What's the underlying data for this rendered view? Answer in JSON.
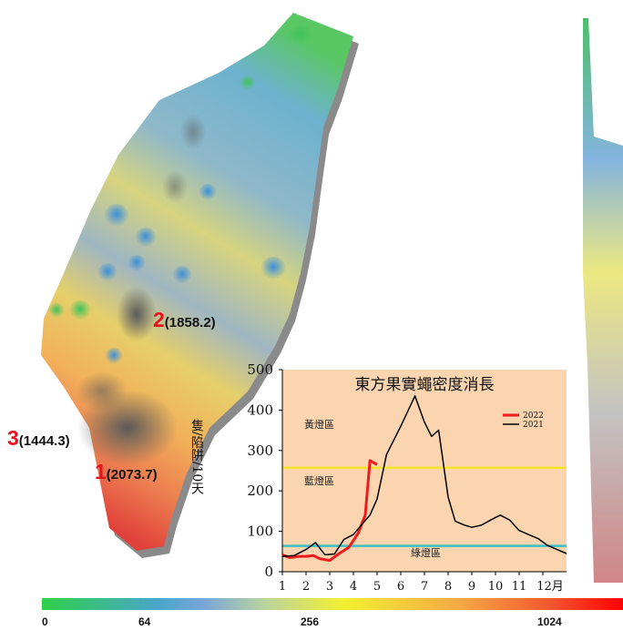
{
  "hotspots": [
    {
      "rank": "2",
      "value": "(1858.2)"
    },
    {
      "rank": "3",
      "value": "(1444.3)"
    },
    {
      "rank": "1",
      "value": "(2073.7)"
    }
  ],
  "colorbar": {
    "ticks": [
      "0",
      "64",
      "256",
      "1024"
    ],
    "colors": [
      "#2fd04a",
      "#49a6c9",
      "#f3f030",
      "#ff0000"
    ]
  },
  "chart_data": {
    "type": "line",
    "title": "東方果實蠅密度消長",
    "ylabel": "隻/陷阱/10天",
    "xlabel": "",
    "x_ticks": [
      "1",
      "2",
      "3",
      "4",
      "5",
      "6",
      "7",
      "8",
      "9",
      "10",
      "11",
      "12月"
    ],
    "y_ticks": [
      "0",
      "100",
      "200",
      "300",
      "400",
      "500"
    ],
    "xlim": [
      1,
      13
    ],
    "ylim": [
      0,
      500
    ],
    "background": "#fbd5b0",
    "zones": [
      {
        "label": "黃燈區",
        "y": 257,
        "color": "#f3e52a"
      },
      {
        "label": "藍燈區",
        "y": null,
        "color": ""
      },
      {
        "label": "綠燈區",
        "y": 64,
        "color": "#3bbfc4"
      }
    ],
    "series": [
      {
        "name": "2022",
        "color": "#ee1c1c",
        "x": [
          1,
          1.3,
          1.7,
          2,
          2.3,
          2.6,
          3,
          3.4,
          3.8,
          4.2,
          4.5,
          4.7,
          5
        ],
        "y": [
          42,
          35,
          38,
          38,
          40,
          32,
          28,
          45,
          60,
          95,
          140,
          275,
          265
        ]
      },
      {
        "name": "2021",
        "color": "#000000",
        "x": [
          1,
          1.5,
          2,
          2.4,
          2.8,
          3.2,
          3.6,
          4,
          4.4,
          4.7,
          5,
          5.4,
          6,
          6.6,
          7,
          7.3,
          7.6,
          8,
          8.3,
          8.7,
          9,
          9.4,
          9.8,
          10.2,
          10.6,
          11,
          11.4,
          11.8,
          12.2,
          12.6,
          13
        ],
        "y": [
          38,
          40,
          55,
          72,
          42,
          44,
          80,
          92,
          120,
          140,
          180,
          290,
          360,
          435,
          370,
          335,
          350,
          185,
          125,
          115,
          110,
          115,
          128,
          140,
          128,
          102,
          92,
          82,
          65,
          55,
          45
        ]
      }
    ]
  }
}
